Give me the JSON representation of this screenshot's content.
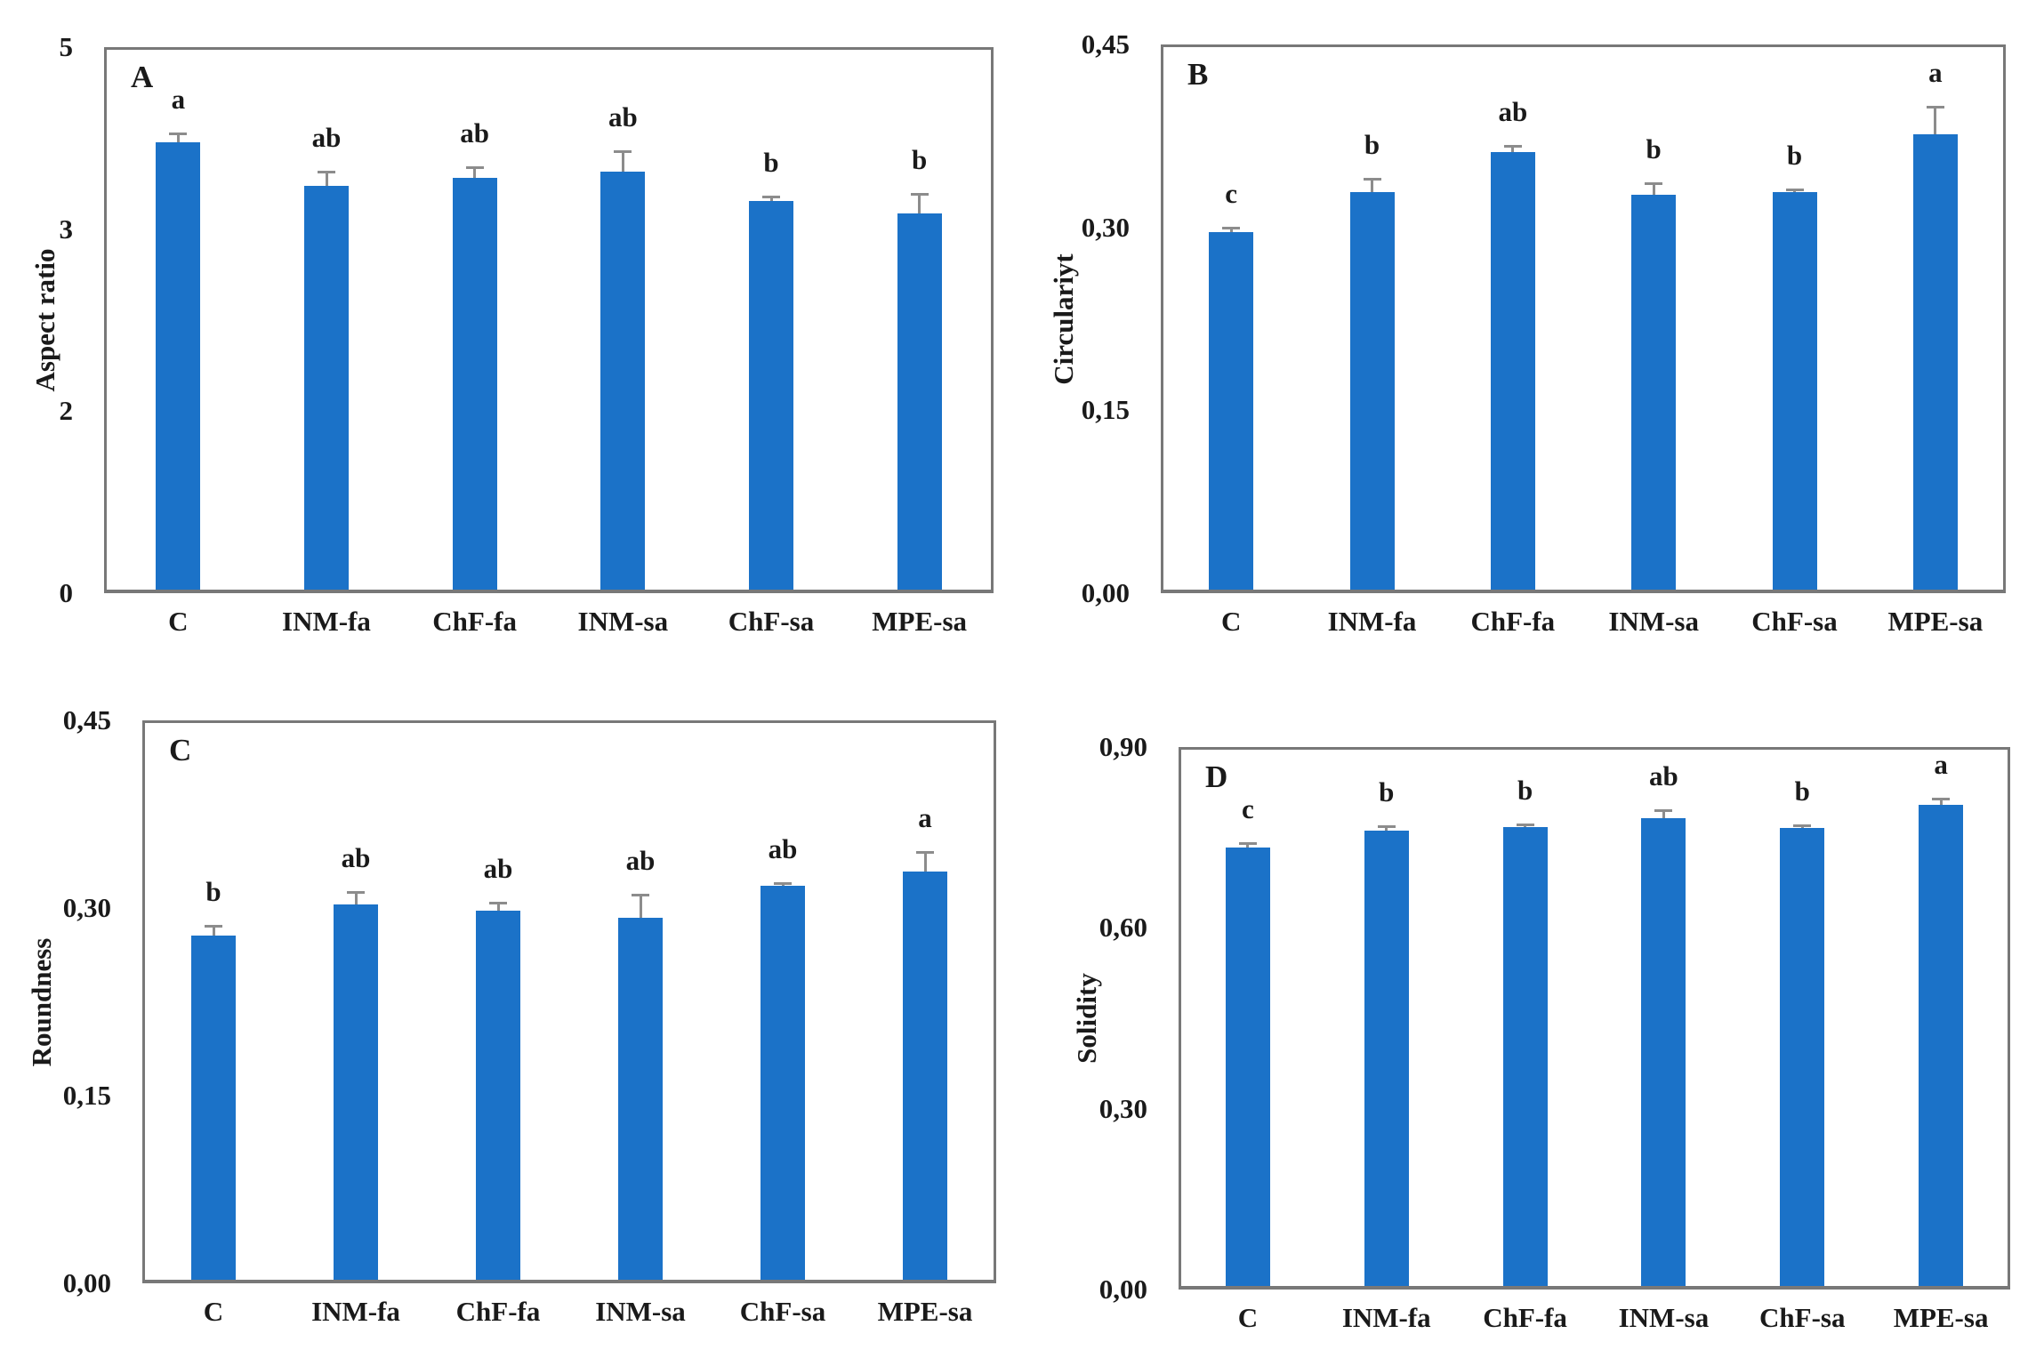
{
  "figure": {
    "bar_color": "#1B72C8",
    "error_bar_color": "#8C8C8C",
    "axis_color": "#787878",
    "text_color": "#1A1A1A",
    "layout_note": "2x2 grid of bar charts, panels A-D"
  },
  "chart_data": [
    {
      "type": "bar",
      "panel_label": "A",
      "title": "",
      "xlabel": "",
      "ylabel": "Aspect ratio",
      "categories": [
        "C",
        "INM-fa",
        "ChF-fa",
        "INM-sa",
        "ChF-sa",
        "MPE-sa"
      ],
      "values": [
        3.95,
        3.48,
        3.56,
        3.63,
        3.31,
        3.17
      ],
      "errors_upper": [
        0.1,
        0.15,
        0.12,
        0.23,
        0.05,
        0.22
      ],
      "sig_letters": [
        "a",
        "ab",
        "ab",
        "ab",
        "b",
        "b"
      ],
      "ytick_labels": [
        "0",
        "2",
        "3",
        "5"
      ],
      "ytick_values": [
        0,
        2,
        3,
        5
      ],
      "ylim": [
        0,
        5
      ],
      "grid": false,
      "legend": "none",
      "axis_note": "y tick labels 0,2,3,5 are equally spaced in the source figure"
    },
    {
      "type": "bar",
      "panel_label": "B",
      "title": "",
      "xlabel": "",
      "ylabel": "Circulariyt",
      "categories": [
        "C",
        "INM-fa",
        "ChF-fa",
        "INM-sa",
        "ChF-sa",
        "MPE-sa"
      ],
      "values": [
        0.296,
        0.329,
        0.362,
        0.327,
        0.329,
        0.376
      ],
      "errors_upper": [
        0.004,
        0.011,
        0.005,
        0.009,
        0.002,
        0.023
      ],
      "sig_letters": [
        "c",
        "b",
        "ab",
        "b",
        "b",
        "a"
      ],
      "ytick_labels": [
        "0,00",
        "0,15",
        "0,30",
        "0,45"
      ],
      "ytick_values": [
        0,
        0.15,
        0.3,
        0.45
      ],
      "ylim": [
        0,
        0.45
      ],
      "grid": false,
      "legend": "none"
    },
    {
      "type": "bar",
      "panel_label": "C",
      "title": "",
      "xlabel": "",
      "ylabel": "Roundness",
      "categories": [
        "C",
        "INM-fa",
        "ChF-fa",
        "INM-sa",
        "ChF-sa",
        "MPE-sa"
      ],
      "values": [
        0.278,
        0.303,
        0.298,
        0.292,
        0.318,
        0.329
      ],
      "errors_upper": [
        0.008,
        0.01,
        0.006,
        0.019,
        0.002,
        0.016
      ],
      "sig_letters": [
        "b",
        "ab",
        "ab",
        "ab",
        "ab",
        "a"
      ],
      "ytick_labels": [
        "0,00",
        "0,15",
        "0,30",
        "0,45"
      ],
      "ytick_values": [
        0,
        0.15,
        0.3,
        0.45
      ],
      "ylim": [
        0,
        0.45
      ],
      "grid": false,
      "legend": "none"
    },
    {
      "type": "bar",
      "panel_label": "D",
      "title": "",
      "xlabel": "",
      "ylabel": "Solidity",
      "categories": [
        "C",
        "INM-fa",
        "ChF-fa",
        "INM-sa",
        "ChF-sa",
        "MPE-sa"
      ],
      "values": [
        0.734,
        0.761,
        0.767,
        0.782,
        0.766,
        0.804
      ],
      "errors_upper": [
        0.006,
        0.007,
        0.004,
        0.013,
        0.004,
        0.01
      ],
      "sig_letters": [
        "c",
        "b",
        "b",
        "ab",
        "b",
        "a"
      ],
      "ytick_labels": [
        "0,00",
        "0,30",
        "0,60",
        "0,90"
      ],
      "ytick_values": [
        0,
        0.3,
        0.6,
        0.9
      ],
      "ylim": [
        0,
        0.9
      ],
      "grid": false,
      "legend": "none"
    }
  ]
}
